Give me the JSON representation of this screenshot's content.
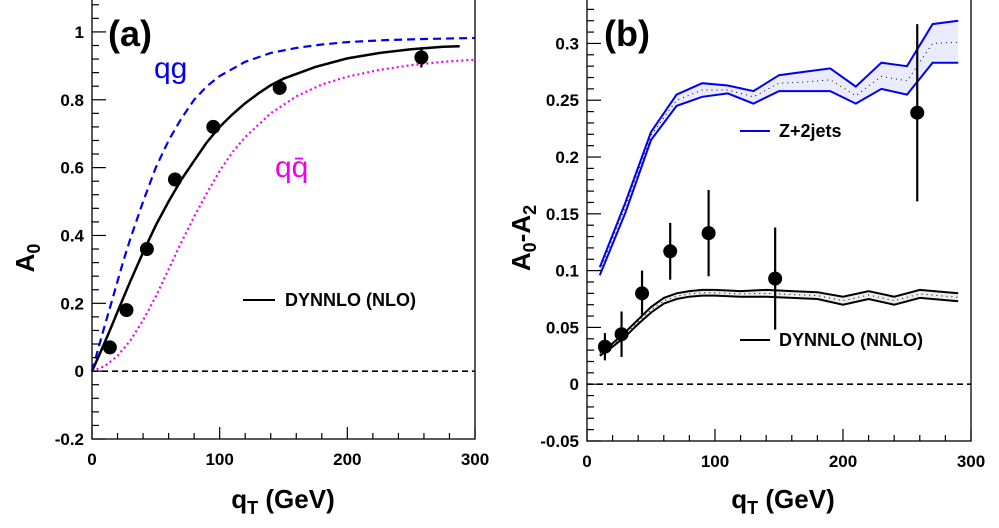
{
  "chart_data": [
    {
      "type": "line",
      "panel_label": "(a)",
      "xlabel_main": "q",
      "xlabel_sub": "T",
      "xlabel_unit": " (GeV)",
      "ylabel_main": "A",
      "ylabel_sub": "0",
      "xlim": [
        0,
        300
      ],
      "ylim": [
        -0.2,
        1.1
      ],
      "xticks": [
        0,
        100,
        200,
        300
      ],
      "xtick_labels": [
        "0",
        "100",
        "200",
        "300"
      ],
      "yticks": [
        -0.2,
        0,
        0.2,
        0.4,
        0.6,
        0.8,
        1
      ],
      "ytick_labels": [
        "-0.2",
        "0",
        "0.2",
        "0.4",
        "0.6",
        "0.8",
        "1"
      ],
      "reference_line": 0,
      "curve_labels": [
        {
          "text": "qg",
          "color": "#0000ee",
          "x": 48,
          "y": 0.97
        },
        {
          "text": "qq̄",
          "color": "#ee00ee",
          "x": 97,
          "y": 0.7
        }
      ],
      "legend": [
        {
          "label": "DYNNLO (NLO)",
          "color": "#000000"
        }
      ],
      "series": [
        {
          "name": "DYNNLO (NLO)",
          "style": "solid",
          "color": "#000000",
          "x": [
            0,
            5,
            10,
            15,
            20,
            25,
            30,
            40,
            50,
            60,
            70,
            80,
            90,
            100,
            110,
            120,
            130,
            140,
            150,
            175,
            200,
            225,
            250,
            275,
            288
          ],
          "y": [
            0,
            0.042,
            0.085,
            0.13,
            0.175,
            0.22,
            0.265,
            0.35,
            0.43,
            0.5,
            0.565,
            0.62,
            0.675,
            0.72,
            0.757,
            0.79,
            0.818,
            0.843,
            0.862,
            0.897,
            0.922,
            0.938,
            0.949,
            0.956,
            0.958
          ]
        },
        {
          "name": "qg",
          "style": "dashed",
          "color": "#0000ee",
          "x": [
            0,
            5,
            10,
            15,
            20,
            25,
            30,
            40,
            50,
            60,
            70,
            80,
            90,
            100,
            120,
            140,
            160,
            180,
            200,
            230,
            260,
            300
          ],
          "y": [
            0,
            0.068,
            0.135,
            0.2,
            0.265,
            0.33,
            0.39,
            0.5,
            0.6,
            0.68,
            0.745,
            0.8,
            0.84,
            0.87,
            0.912,
            0.938,
            0.953,
            0.963,
            0.97,
            0.976,
            0.979,
            0.982
          ]
        },
        {
          "name": "qq̄",
          "style": "dotted",
          "color": "#ee00ee",
          "x": [
            0,
            10,
            20,
            30,
            40,
            50,
            60,
            70,
            80,
            90,
            100,
            110,
            120,
            140,
            160,
            180,
            200,
            225,
            250,
            275,
            300
          ],
          "y": [
            0,
            0.015,
            0.045,
            0.09,
            0.15,
            0.22,
            0.3,
            0.38,
            0.455,
            0.525,
            0.59,
            0.645,
            0.69,
            0.76,
            0.81,
            0.845,
            0.868,
            0.888,
            0.902,
            0.912,
            0.918
          ]
        }
      ],
      "points": {
        "x": [
          14,
          27,
          43,
          65,
          95,
          147,
          258
        ],
        "y": [
          0.07,
          0.18,
          0.36,
          0.565,
          0.72,
          0.835,
          0.925
        ],
        "yerr": [
          0.01,
          0.015,
          0.015,
          0.02,
          0.02,
          0.02,
          0.03
        ]
      }
    },
    {
      "type": "line",
      "panel_label": "(b)",
      "xlabel_main": "q",
      "xlabel_sub": "T",
      "xlabel_unit": " (GeV)",
      "ylabel_main": "A",
      "ylabel_sub": "0",
      "ylabel_mid": "-A",
      "ylabel_sub2": "2",
      "xlim": [
        0,
        300
      ],
      "ylim": [
        -0.05,
        0.34
      ],
      "xticks": [
        0,
        100,
        200,
        300
      ],
      "xtick_labels": [
        "0",
        "100",
        "200",
        "300"
      ],
      "yticks": [
        -0.05,
        0,
        0.05,
        0.1,
        0.15,
        0.2,
        0.25,
        0.3
      ],
      "ytick_labels": [
        "-0.05",
        "0",
        "0.05",
        "0.1",
        "0.15",
        "0.2",
        "0.25",
        "0.3"
      ],
      "reference_line": 0,
      "legend": [
        {
          "label": "Z+2jets",
          "color": "#0000ee"
        },
        {
          "label": "DYNNLO (NNLO)",
          "color": "#000000"
        }
      ],
      "bands": [
        {
          "name": "Z+2jets",
          "color": "#0000ee",
          "x": [
            10,
            30,
            50,
            70,
            90,
            110,
            130,
            150,
            170,
            190,
            210,
            230,
            250,
            270,
            290
          ],
          "y_upper": [
            0.103,
            0.16,
            0.222,
            0.255,
            0.265,
            0.263,
            0.258,
            0.272,
            0.275,
            0.278,
            0.262,
            0.283,
            0.28,
            0.317,
            0.32
          ],
          "y_lower": [
            0.096,
            0.151,
            0.215,
            0.245,
            0.253,
            0.256,
            0.247,
            0.258,
            0.258,
            0.258,
            0.247,
            0.26,
            0.255,
            0.283,
            0.283
          ],
          "y_center": [
            0.1,
            0.156,
            0.219,
            0.25,
            0.259,
            0.259,
            0.253,
            0.265,
            0.266,
            0.268,
            0.254,
            0.271,
            0.267,
            0.3,
            0.301
          ]
        },
        {
          "name": "DYNNLO (NNLO)",
          "color": "#000000",
          "x": [
            10,
            20,
            30,
            40,
            50,
            60,
            70,
            80,
            90,
            100,
            120,
            140,
            160,
            180,
            200,
            220,
            240,
            260,
            290
          ],
          "y_upper": [
            0.028,
            0.036,
            0.046,
            0.057,
            0.068,
            0.076,
            0.08,
            0.082,
            0.083,
            0.083,
            0.082,
            0.083,
            0.082,
            0.081,
            0.077,
            0.082,
            0.077,
            0.083,
            0.08
          ],
          "y_lower": [
            0.025,
            0.033,
            0.042,
            0.053,
            0.063,
            0.071,
            0.075,
            0.077,
            0.078,
            0.078,
            0.077,
            0.077,
            0.076,
            0.075,
            0.07,
            0.075,
            0.07,
            0.076,
            0.073
          ],
          "y_center": [
            0.0265,
            0.0345,
            0.044,
            0.055,
            0.0655,
            0.0735,
            0.0775,
            0.0795,
            0.0805,
            0.0805,
            0.0795,
            0.08,
            0.079,
            0.078,
            0.0735,
            0.0785,
            0.0735,
            0.0795,
            0.0765
          ]
        }
      ],
      "points": {
        "x": [
          14,
          27,
          43,
          65,
          95,
          147,
          258
        ],
        "y": [
          0.033,
          0.044,
          0.08,
          0.117,
          0.133,
          0.093,
          0.239
        ],
        "yerr": [
          0.012,
          0.02,
          0.02,
          0.025,
          0.038,
          0.045,
          0.078
        ]
      }
    }
  ]
}
